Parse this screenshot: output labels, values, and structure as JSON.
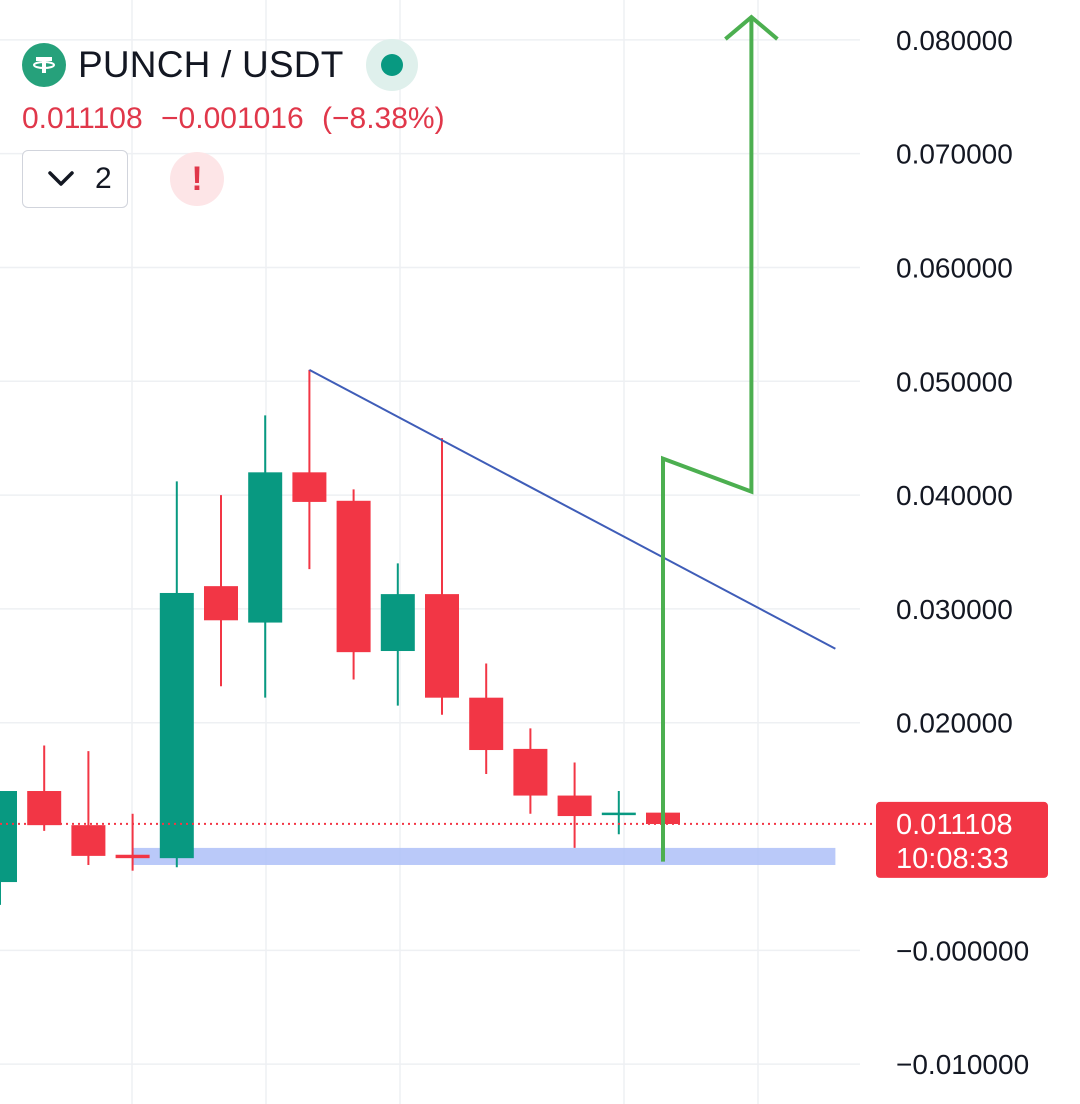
{
  "header": {
    "symbol": "PUNCH / USDT",
    "price": "0.011108",
    "change": "−0.001016",
    "change_pct": "(−8.38%)",
    "collapse_count": "2",
    "alert_symbol": "!"
  },
  "colors": {
    "up": "#089981",
    "down": "#f23645",
    "trendline": "#3f5db8",
    "arrow": "#4caf50",
    "support_zone": "#aebff8",
    "grid": "#eef0f3",
    "axis_text": "#131722",
    "price_label_bg": "#f23645",
    "coin_logo": "#26a17b"
  },
  "chart_data": {
    "type": "candlestick",
    "y_axis": {
      "ticks": [
        "0.080000",
        "0.070000",
        "0.060000",
        "0.050000",
        "0.040000",
        "0.030000",
        "0.020000",
        "−0.000000",
        "−0.010000"
      ],
      "tick_values": [
        0.08,
        0.07,
        0.06,
        0.05,
        0.04,
        0.03,
        0.02,
        0.0,
        -0.01
      ],
      "range": [
        -0.0135,
        0.0835
      ]
    },
    "grid": true,
    "candles": [
      {
        "open": 0.006,
        "high": 0.014,
        "low": 0.004,
        "close": 0.014
      },
      {
        "open": 0.014,
        "high": 0.018,
        "low": 0.0105,
        "close": 0.011
      },
      {
        "open": 0.011,
        "high": 0.0175,
        "low": 0.0075,
        "close": 0.0083
      },
      {
        "open": 0.0084,
        "high": 0.012,
        "low": 0.007,
        "close": 0.0081
      },
      {
        "open": 0.0081,
        "high": 0.0412,
        "low": 0.0073,
        "close": 0.0314
      },
      {
        "open": 0.032,
        "high": 0.04,
        "low": 0.0232,
        "close": 0.029
      },
      {
        "open": 0.0288,
        "high": 0.047,
        "low": 0.0222,
        "close": 0.042
      },
      {
        "open": 0.042,
        "high": 0.051,
        "low": 0.0335,
        "close": 0.0394
      },
      {
        "open": 0.0395,
        "high": 0.0405,
        "low": 0.0238,
        "close": 0.0262
      },
      {
        "open": 0.0263,
        "high": 0.034,
        "low": 0.0215,
        "close": 0.0313
      },
      {
        "open": 0.0313,
        "high": 0.045,
        "low": 0.0207,
        "close": 0.0222
      },
      {
        "open": 0.0222,
        "high": 0.0252,
        "low": 0.0155,
        "close": 0.0176
      },
      {
        "open": 0.0177,
        "high": 0.0195,
        "low": 0.012,
        "close": 0.0136
      },
      {
        "open": 0.0136,
        "high": 0.0165,
        "low": 0.009,
        "close": 0.0118
      },
      {
        "open": 0.0121,
        "high": 0.014,
        "low": 0.0102,
        "close": 0.0121
      },
      {
        "open": 0.0121,
        "high": 0.0125,
        "low": 0.011,
        "close": 0.0111
      }
    ],
    "current_price": {
      "value": 0.011108,
      "label": "0.011108",
      "countdown": "10:08:33"
    },
    "trendline": {
      "from": {
        "candle": 7,
        "price": 0.051
      },
      "to": {
        "candle": 18.9,
        "price": 0.0265
      }
    },
    "support_zone": {
      "from_candle": 3,
      "to_candle": 18.9,
      "top": 0.009,
      "bottom": 0.0075
    },
    "projection_arrow": [
      {
        "candle": 15,
        "price": 0.0078
      },
      {
        "candle": 15,
        "price": 0.0432
      },
      {
        "candle": 17,
        "price": 0.0403
      },
      {
        "candle": 17,
        "price": 0.082
      }
    ]
  }
}
